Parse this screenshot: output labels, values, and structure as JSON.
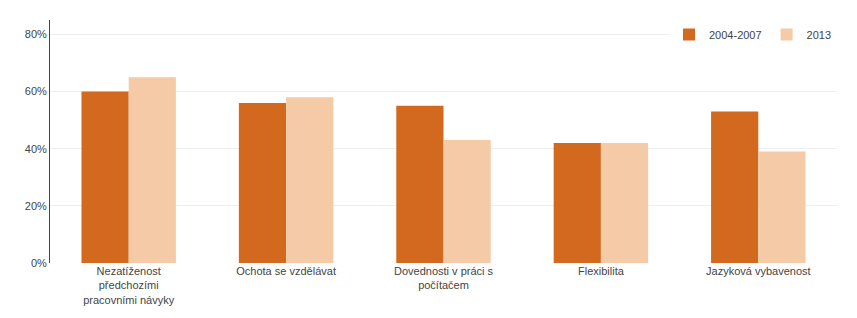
{
  "chart_data": {
    "type": "bar",
    "categories": [
      "Nezatíženost\npředchozími\npracovními návyky",
      "Ochota se vzdělávat",
      "Dovednosti v práci s\npočítačem",
      "Flexibilita",
      "Jazyková vybavenost"
    ],
    "series": [
      {
        "name": "2004-2007",
        "color": "#D2691E",
        "values": [
          0.6,
          0.56,
          0.55,
          0.42,
          0.53
        ]
      },
      {
        "name": "2013",
        "color": "#F5CBA7",
        "values": [
          0.65,
          0.58,
          0.43,
          0.42,
          0.39
        ]
      }
    ],
    "ylim": [
      0,
      0.85
    ],
    "yticks": [
      {
        "value": 0.0,
        "label": "0%"
      },
      {
        "value": 0.2,
        "label": "20%"
      },
      {
        "value": 0.4,
        "label": "40%"
      },
      {
        "value": 0.6,
        "label": "60%"
      },
      {
        "value": 0.8,
        "label": "80%"
      }
    ],
    "grid": true,
    "legend": "upper right"
  }
}
